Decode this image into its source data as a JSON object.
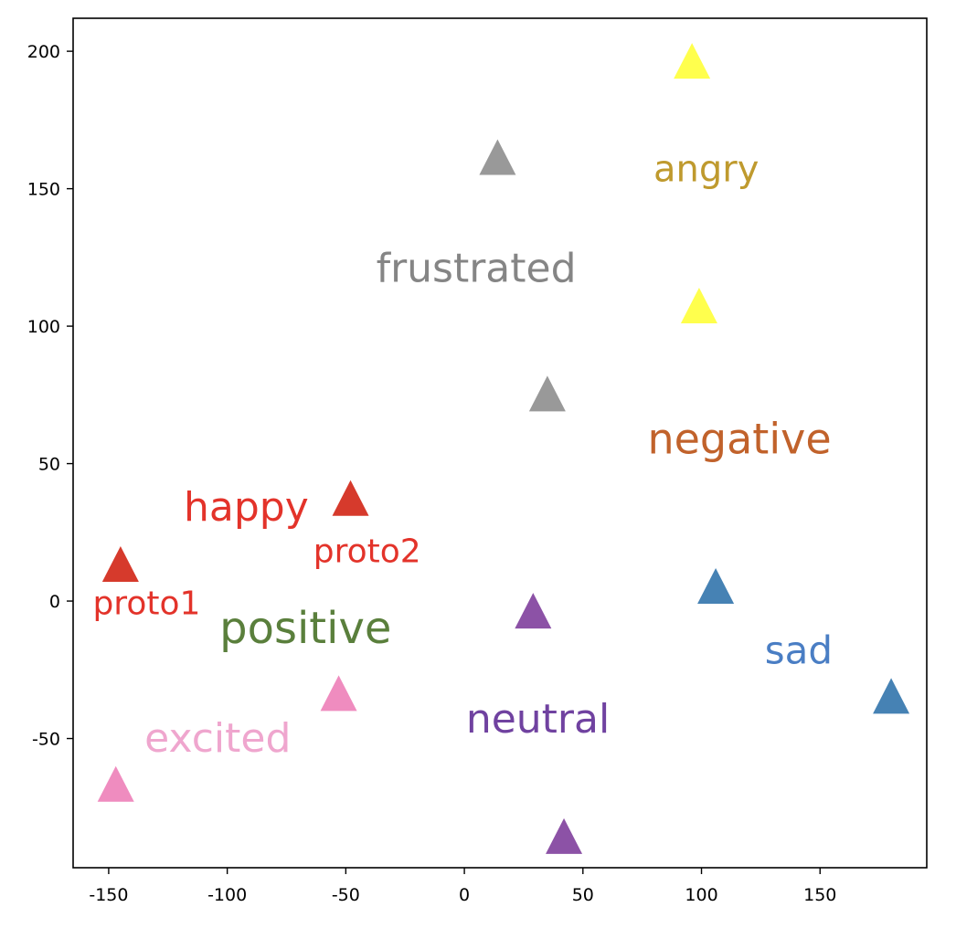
{
  "chart_data": {
    "type": "scatter",
    "title": "",
    "xlabel": "",
    "ylabel": "",
    "xlim": [
      -165,
      195
    ],
    "ylim": [
      -97,
      212
    ],
    "grid": false,
    "marker": "triangle-up",
    "xticks": [
      {
        "value": -150,
        "label": "-150"
      },
      {
        "value": -100,
        "label": "-100"
      },
      {
        "value": -50,
        "label": "-50"
      },
      {
        "value": 0,
        "label": "0"
      },
      {
        "value": 50,
        "label": "50"
      },
      {
        "value": 100,
        "label": "100"
      },
      {
        "value": 150,
        "label": "150"
      }
    ],
    "yticks": [
      {
        "value": -50,
        "label": "-50"
      },
      {
        "value": 0,
        "label": "0"
      },
      {
        "value": 50,
        "label": "50"
      },
      {
        "value": 100,
        "label": "100"
      },
      {
        "value": 150,
        "label": "150"
      },
      {
        "value": 200,
        "label": "200"
      }
    ],
    "points": [
      {
        "x": 96,
        "y": 195,
        "color": "#ffff4d"
      },
      {
        "x": 99,
        "y": 106,
        "color": "#ffff4d"
      },
      {
        "x": 14,
        "y": 160,
        "color": "#999999"
      },
      {
        "x": 35,
        "y": 74,
        "color": "#999999"
      },
      {
        "x": -48,
        "y": 36,
        "color": "#d63a2c"
      },
      {
        "x": -145,
        "y": 12,
        "color": "#d63a2c"
      },
      {
        "x": 29,
        "y": -5,
        "color": "#8c52a6"
      },
      {
        "x": 42,
        "y": -87,
        "color": "#8c52a6"
      },
      {
        "x": 106,
        "y": 4,
        "color": "#4682b4"
      },
      {
        "x": 180,
        "y": -36,
        "color": "#4682b4"
      },
      {
        "x": -53,
        "y": -35,
        "color": "#ef8cbf"
      },
      {
        "x": -147,
        "y": -68,
        "color": "#ef8cbf"
      }
    ],
    "annotations": [
      {
        "text": "angry",
        "x": 102,
        "y": 157,
        "color": "#bf9a2e",
        "size": 40
      },
      {
        "text": "frustrated",
        "x": 5,
        "y": 121,
        "color": "#858585",
        "size": 44
      },
      {
        "text": "negative",
        "x": 116,
        "y": 59,
        "color": "#c1622b",
        "size": 46
      },
      {
        "text": "happy",
        "x": -92,
        "y": 34,
        "color": "#e3332a",
        "size": 44
      },
      {
        "text": "proto2",
        "x": -41,
        "y": 18,
        "color": "#e3332a",
        "size": 36
      },
      {
        "text": "proto1",
        "x": -134,
        "y": -1,
        "color": "#e3332a",
        "size": 36
      },
      {
        "text": "positive",
        "x": -67,
        "y": -10,
        "color": "#5a7f3c",
        "size": 48
      },
      {
        "text": "sad",
        "x": 141,
        "y": -18,
        "color": "#4a7ec4",
        "size": 42
      },
      {
        "text": "neutral",
        "x": 31,
        "y": -43,
        "color": "#7042a0",
        "size": 44
      },
      {
        "text": "excited",
        "x": -104,
        "y": -50,
        "color": "#efa6ce",
        "size": 44
      }
    ]
  }
}
